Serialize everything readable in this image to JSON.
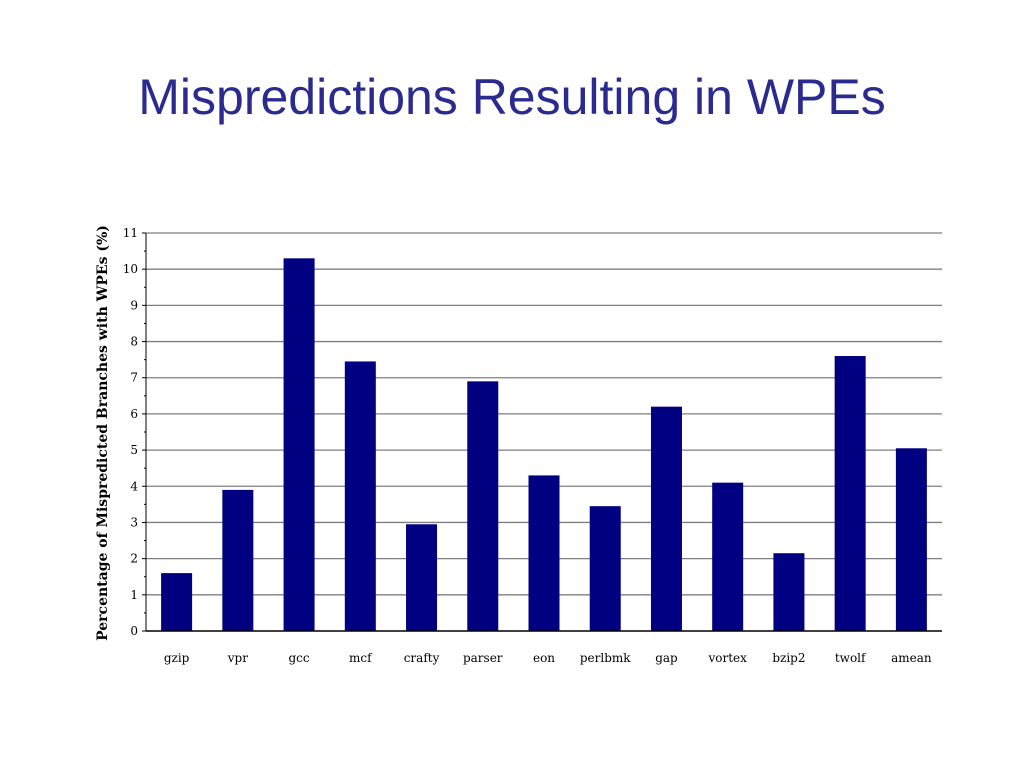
{
  "slide": {
    "title": "Mispredictions Resulting in WPEs"
  },
  "colors": {
    "title": "#2b2b8f",
    "bar": "#000080",
    "grid": "#7f7f7f",
    "axis": "#000000"
  },
  "chart_data": {
    "type": "bar",
    "title": "",
    "xlabel": "",
    "ylabel": "Percentage of Mispredicted Branches with WPEs (%)",
    "ylim": [
      0,
      11
    ],
    "yticks": [
      0,
      1,
      2,
      3,
      4,
      5,
      6,
      7,
      8,
      9,
      10,
      11
    ],
    "grid": true,
    "legend": "none",
    "categories": [
      "gzip",
      "vpr",
      "gcc",
      "mcf",
      "crafty",
      "parser",
      "eon",
      "perlbmk",
      "gap",
      "vortex",
      "bzip2",
      "twolf",
      "amean"
    ],
    "values": [
      1.6,
      3.9,
      10.3,
      7.45,
      2.95,
      6.9,
      4.3,
      3.45,
      6.2,
      4.1,
      2.15,
      7.6,
      5.05
    ]
  }
}
